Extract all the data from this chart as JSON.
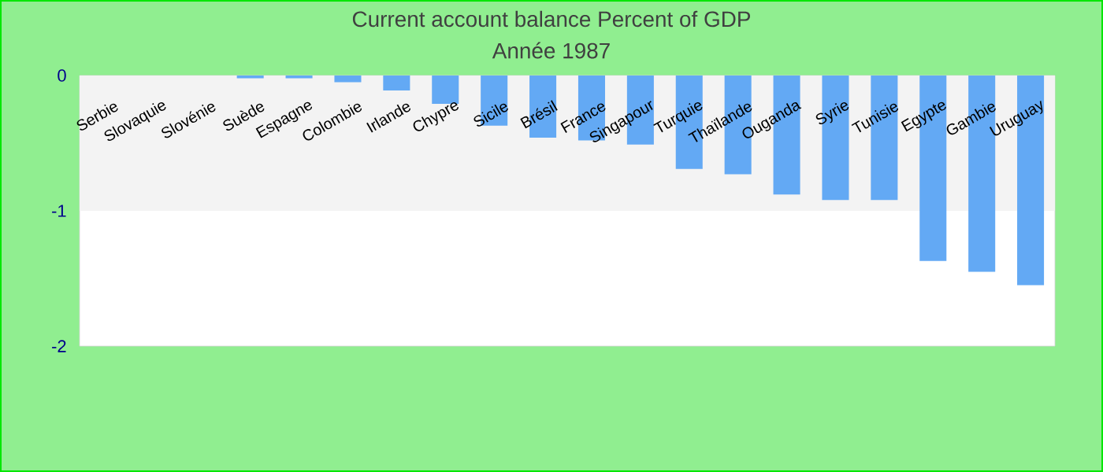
{
  "chart_data": {
    "type": "bar",
    "title": "Current account balance  Percent of GDP",
    "subtitle": "Année 1987",
    "categories": [
      "Serbie",
      "Slovaquie",
      "Slovénie",
      "Suède",
      "Espagne",
      "Colombie",
      "Irlande",
      "Chypre",
      "Sicile",
      "Brésil",
      "France",
      "Singapour",
      "Turquie",
      "Thaïlande",
      "Ouganda",
      "Syrie",
      "Tunisie",
      "Egypte",
      "Gambie",
      "Uruguay"
    ],
    "values": [
      0,
      0,
      0,
      -0.02,
      -0.02,
      -0.05,
      -0.11,
      -0.21,
      -0.37,
      -0.46,
      -0.48,
      -0.51,
      -0.69,
      -0.73,
      -0.88,
      -0.92,
      -0.92,
      -1.37,
      -1.45,
      -1.55
    ],
    "color": "#63a9f4",
    "ylim": [
      -2,
      0
    ],
    "yticks": [
      -2,
      -1,
      0
    ],
    "grid": false,
    "bands": [
      {
        "axis": "y",
        "from": -1,
        "to": 0,
        "color": "#f3f3f3"
      }
    ]
  }
}
